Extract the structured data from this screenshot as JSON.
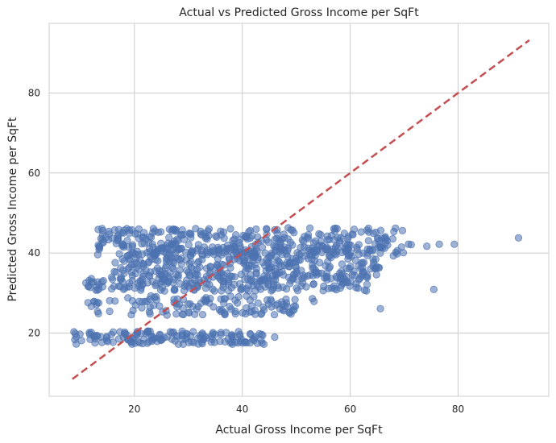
{
  "chart_data": {
    "type": "scatter",
    "title": "Actual vs Predicted Gross Income per SqFt",
    "xlabel": "Actual Gross Income per SqFt",
    "ylabel": "Predicted Gross Income per SqFt",
    "xlim": [
      4.2,
      96.8
    ],
    "ylim": [
      4.2,
      97.4
    ],
    "x_ticks": [
      20,
      40,
      60,
      80
    ],
    "y_ticks": [
      20,
      40,
      60,
      80
    ],
    "grid": true,
    "point_color": "#4c72b0",
    "reference_line_color": "#c44e52",
    "reference_line": {
      "style": "dashed",
      "from": [
        8.5,
        8.5
      ],
      "to": [
        93.2,
        93.2
      ]
    },
    "clusters": [
      {
        "x_range": [
          8.5,
          44
        ],
        "y_range": [
          17.2,
          20.6
        ],
        "count": 150
      },
      {
        "x_range": [
          12,
          50
        ],
        "y_range": [
          24.5,
          29.3
        ],
        "count": 120
      },
      {
        "x_range": [
          11,
          64
        ],
        "y_range": [
          30.5,
          34.5
        ],
        "count": 220
      },
      {
        "x_range": [
          16,
          66
        ],
        "y_range": [
          34.5,
          41.5
        ],
        "count": 320
      },
      {
        "x_range": [
          13,
          70
        ],
        "y_range": [
          39.5,
          46.3
        ],
        "count": 300
      }
    ],
    "points": [
      {
        "x": 91.2,
        "y": 43.8
      },
      {
        "x": 79.3,
        "y": 42.2
      },
      {
        "x": 76.5,
        "y": 42.2
      },
      {
        "x": 74.2,
        "y": 41.7
      },
      {
        "x": 71.3,
        "y": 42.1
      },
      {
        "x": 70.8,
        "y": 42.2
      },
      {
        "x": 75.5,
        "y": 30.9
      },
      {
        "x": 65.6,
        "y": 26.1
      },
      {
        "x": 60.1,
        "y": 32.8
      },
      {
        "x": 68.0,
        "y": 39.3
      },
      {
        "x": 68.7,
        "y": 39.8
      },
      {
        "x": 69.5,
        "y": 41.5
      },
      {
        "x": 62.3,
        "y": 37.5
      },
      {
        "x": 46.0,
        "y": 19.0
      },
      {
        "x": 41.5,
        "y": 19.7
      },
      {
        "x": 53.0,
        "y": 28.6
      },
      {
        "x": 53.3,
        "y": 27.9
      },
      {
        "x": 47.3,
        "y": 27.8
      },
      {
        "x": 48.5,
        "y": 46.3
      },
      {
        "x": 49.0,
        "y": 45.8
      },
      {
        "x": 14.7,
        "y": 43.9
      },
      {
        "x": 14.1,
        "y": 42.5
      },
      {
        "x": 13.5,
        "y": 41.6
      },
      {
        "x": 13.2,
        "y": 39.6
      },
      {
        "x": 13.0,
        "y": 31.5
      },
      {
        "x": 11.8,
        "y": 31.4
      },
      {
        "x": 9.2,
        "y": 19.1
      },
      {
        "x": 8.8,
        "y": 20.3
      },
      {
        "x": 10.2,
        "y": 18.1
      },
      {
        "x": 12.5,
        "y": 27.9
      },
      {
        "x": 11.4,
        "y": 27.6
      }
    ]
  }
}
